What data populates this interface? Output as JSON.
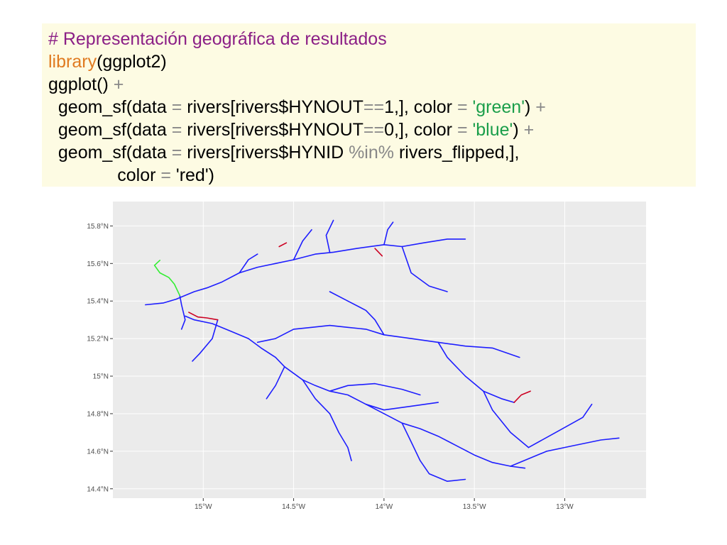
{
  "code": {
    "comment": "# Representación geográfica de resultados",
    "line2_fn": "library",
    "line2_rest": "(ggplot2)",
    "line3_fn": "ggplot()",
    "line3_op": " +",
    "line4_a": "  geom_sf(data ",
    "line4_eq": "=",
    "line4_b": " rivers[rivers$HYNOUT",
    "line4_eqeq": "==",
    "line4_c": "1,], color ",
    "line4_eq2": "=",
    "line4_str": " 'green'",
    "line4_d": ")",
    "line4_plus": " +",
    "line5_a": "  geom_sf(data ",
    "line5_eq": "=",
    "line5_b": " rivers[rivers$HYNOUT",
    "line5_eqeq": "==",
    "line5_c": "0,], color ",
    "line5_eq2": "=",
    "line5_str": " 'blue'",
    "line5_d": ")",
    "line5_plus": " +",
    "line6_a": "  geom_sf(data ",
    "line6_eq": "=",
    "line6_b": " rivers[rivers$HYNID ",
    "line6_in": "%in%",
    "line6_c": " rivers_flipped,],",
    "line7_a": "              color ",
    "line7_eq": "=",
    "line7_b": " 'red')"
  },
  "chart_data": {
    "type": "map",
    "x_ticks": [
      "15°W",
      "14.5°W",
      "14°W",
      "13.5°W",
      "13°W"
    ],
    "y_ticks": [
      "14.4°N",
      "14.6°N",
      "14.8°N",
      "15°N",
      "15.2°N",
      "15.4°N",
      "15.6°N",
      "15.8°N"
    ],
    "xlim": [
      -15.5,
      -12.55
    ],
    "ylim": [
      14.35,
      15.93
    ],
    "grid": true,
    "colors": {
      "panel": "#ebebeb",
      "grid": "#ffffff",
      "green": "#33ee33",
      "blue": "#1e1eff",
      "red": "#cc0022"
    },
    "series": [
      {
        "color": "green",
        "lines": [
          [
            [
              -15.24,
              15.617
            ],
            [
              -15.27,
              15.59
            ],
            [
              -15.24,
              15.55
            ],
            [
              -15.19,
              15.525
            ],
            [
              -15.16,
              15.49
            ],
            [
              -15.13,
              15.43
            ]
          ]
        ]
      },
      {
        "color": "red",
        "lines": [
          [
            [
              -15.08,
              15.34
            ],
            [
              -15.03,
              15.315
            ],
            [
              -14.98,
              15.31
            ],
            [
              -14.92,
              15.3
            ]
          ],
          [
            [
              -14.58,
              15.69
            ],
            [
              -14.54,
              15.71
            ]
          ],
          [
            [
              -14.05,
              15.68
            ],
            [
              -14.01,
              15.64
            ]
          ],
          [
            [
              -13.28,
              14.86
            ],
            [
              -13.24,
              14.9
            ],
            [
              -13.19,
              14.92
            ]
          ]
        ]
      },
      {
        "color": "blue",
        "lines": [
          [
            [
              -15.32,
              15.38
            ],
            [
              -15.22,
              15.39
            ],
            [
              -15.15,
              15.41
            ],
            [
              -15.05,
              15.45
            ],
            [
              -14.98,
              15.47
            ],
            [
              -14.9,
              15.5
            ],
            [
              -14.8,
              15.55
            ],
            [
              -14.7,
              15.58
            ],
            [
              -14.6,
              15.6
            ],
            [
              -14.5,
              15.62
            ],
            [
              -14.38,
              15.65
            ],
            [
              -14.28,
              15.66
            ],
            [
              -14.15,
              15.68
            ],
            [
              -14.0,
              15.7
            ],
            [
              -13.9,
              15.69
            ],
            [
              -13.78,
              15.71
            ],
            [
              -13.65,
              15.73
            ],
            [
              -13.55,
              15.73
            ]
          ],
          [
            [
              -15.13,
              15.43
            ],
            [
              -15.12,
              15.38
            ],
            [
              -15.1,
              15.3
            ],
            [
              -15.12,
              15.25
            ]
          ],
          [
            [
              -15.1,
              15.32
            ],
            [
              -15.05,
              15.3
            ],
            [
              -14.95,
              15.28
            ],
            [
              -14.85,
              15.24
            ],
            [
              -14.75,
              15.2
            ],
            [
              -14.68,
              15.15
            ],
            [
              -14.6,
              15.1
            ],
            [
              -14.55,
              15.05
            ],
            [
              -14.45,
              14.98
            ],
            [
              -14.38,
              14.95
            ],
            [
              -14.3,
              14.92
            ],
            [
              -14.2,
              14.9
            ],
            [
              -14.1,
              14.85
            ],
            [
              -14.0,
              14.8
            ],
            [
              -13.9,
              14.75
            ],
            [
              -13.8,
              14.72
            ],
            [
              -13.7,
              14.68
            ],
            [
              -13.6,
              14.63
            ],
            [
              -13.5,
              14.58
            ],
            [
              -13.4,
              14.54
            ],
            [
              -13.3,
              14.52
            ],
            [
              -13.22,
              14.51
            ]
          ],
          [
            [
              -14.92,
              15.3
            ],
            [
              -14.95,
              15.2
            ],
            [
              -15.02,
              15.12
            ],
            [
              -15.06,
              15.08
            ]
          ],
          [
            [
              -14.7,
              15.18
            ],
            [
              -14.6,
              15.2
            ],
            [
              -14.5,
              15.25
            ],
            [
              -14.4,
              15.26
            ],
            [
              -14.3,
              15.27
            ],
            [
              -14.2,
              15.26
            ],
            [
              -14.1,
              15.25
            ],
            [
              -14.0,
              15.22
            ],
            [
              -13.85,
              15.2
            ],
            [
              -13.7,
              15.18
            ],
            [
              -13.55,
              15.16
            ],
            [
              -13.4,
              15.15
            ],
            [
              -13.25,
              15.1
            ]
          ],
          [
            [
              -14.55,
              15.05
            ],
            [
              -14.6,
              14.95
            ],
            [
              -14.65,
              14.88
            ]
          ],
          [
            [
              -14.45,
              14.98
            ],
            [
              -14.38,
              14.88
            ],
            [
              -14.3,
              14.8
            ],
            [
              -14.25,
              14.7
            ],
            [
              -14.2,
              14.62
            ],
            [
              -14.18,
              14.55
            ]
          ],
          [
            [
              -14.3,
              14.92
            ],
            [
              -14.2,
              14.95
            ],
            [
              -14.05,
              14.96
            ],
            [
              -13.9,
              14.93
            ],
            [
              -13.8,
              14.9
            ]
          ],
          [
            [
              -14.1,
              14.85
            ],
            [
              -14.0,
              14.82
            ],
            [
              -13.85,
              14.84
            ],
            [
              -13.7,
              14.86
            ]
          ],
          [
            [
              -13.9,
              14.75
            ],
            [
              -13.85,
              14.65
            ],
            [
              -13.8,
              14.55
            ],
            [
              -13.75,
              14.48
            ],
            [
              -13.65,
              14.44
            ],
            [
              -13.55,
              14.45
            ]
          ],
          [
            [
              -14.0,
              15.22
            ],
            [
              -14.05,
              15.3
            ],
            [
              -14.1,
              15.35
            ],
            [
              -14.2,
              15.4
            ],
            [
              -14.3,
              15.45
            ]
          ],
          [
            [
              -13.7,
              15.18
            ],
            [
              -13.65,
              15.1
            ],
            [
              -13.55,
              15.0
            ],
            [
              -13.45,
              14.92
            ],
            [
              -13.35,
              14.88
            ],
            [
              -13.28,
              14.86
            ]
          ],
          [
            [
              -13.45,
              14.92
            ],
            [
              -13.4,
              14.82
            ],
            [
              -13.3,
              14.7
            ],
            [
              -13.2,
              14.62
            ]
          ],
          [
            [
              -14.3,
              15.66
            ],
            [
              -14.32,
              15.75
            ],
            [
              -14.28,
              15.83
            ]
          ],
          [
            [
              -14.0,
              15.7
            ],
            [
              -13.98,
              15.78
            ],
            [
              -13.95,
              15.82
            ]
          ],
          [
            [
              -13.9,
              15.69
            ],
            [
              -13.85,
              15.55
            ],
            [
              -13.75,
              15.48
            ],
            [
              -13.65,
              15.45
            ]
          ],
          [
            [
              -14.8,
              15.55
            ],
            [
              -14.75,
              15.62
            ],
            [
              -14.7,
              15.65
            ]
          ],
          [
            [
              -14.5,
              15.62
            ],
            [
              -14.45,
              15.72
            ],
            [
              -14.4,
              15.78
            ]
          ],
          [
            [
              -13.3,
              14.52
            ],
            [
              -13.1,
              14.6
            ],
            [
              -12.95,
              14.63
            ],
            [
              -12.8,
              14.66
            ],
            [
              -12.7,
              14.67
            ]
          ],
          [
            [
              -13.2,
              14.62
            ],
            [
              -13.05,
              14.7
            ],
            [
              -12.9,
              14.78
            ],
            [
              -12.85,
              14.85
            ]
          ]
        ]
      }
    ]
  }
}
